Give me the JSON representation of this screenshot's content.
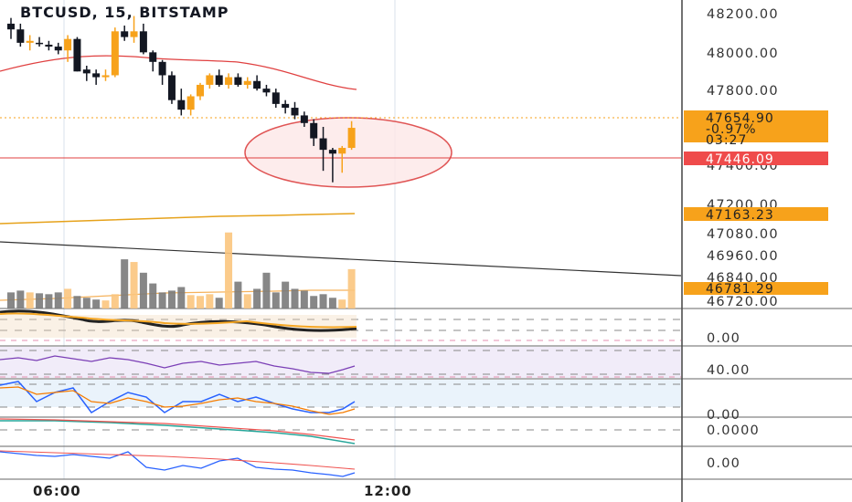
{
  "header": {
    "title": "BTCUSD, 15, BITSTAMP"
  },
  "colors": {
    "up": "#f7a21b",
    "down": "#131722",
    "ema": "#e6a21b",
    "band": "#e04040",
    "trend": "#333333",
    "volume_up": "#fbc57e",
    "volume_down": "#7a7a7a",
    "rsi": "#7b3fb6",
    "stoch_k": "#2962ff",
    "stoch_d": "#f57c00",
    "macd": "#26a69a",
    "macd_signal": "#ef5350"
  },
  "price_axis": {
    "ticks": [
      "48200.00",
      "48000.00",
      "47800.00",
      "47400.00",
      "47200.00",
      "47080.00",
      "46960.00",
      "46840.00",
      "46720.00"
    ]
  },
  "indicator_axes": {
    "volume_osc": "0.00",
    "rsi": "40.00",
    "stoch": "0.00",
    "macd": "0.0000",
    "last": "0.00"
  },
  "tags": {
    "last_price": "47654.90",
    "change": "-0.97%",
    "countdown": "03:27",
    "support": "47446.09",
    "ema": "47163.23",
    "trend": "46781.29"
  },
  "time_axis": {
    "labels": [
      "06:00",
      "12:00"
    ]
  },
  "chart_data": {
    "type": "candlestick",
    "title": "BTCUSD, 15, BITSTAMP",
    "candles": [
      {
        "o": 48200,
        "h": 48230,
        "l": 48120,
        "c": 48170
      },
      {
        "o": 48170,
        "h": 48200,
        "l": 48080,
        "c": 48100
      },
      {
        "o": 48100,
        "h": 48140,
        "l": 48060,
        "c": 48110
      },
      {
        "o": 48100,
        "h": 48130,
        "l": 48080,
        "c": 48095
      },
      {
        "o": 48090,
        "h": 48110,
        "l": 48060,
        "c": 48080
      },
      {
        "o": 48080,
        "h": 48100,
        "l": 48040,
        "c": 48060
      },
      {
        "o": 48060,
        "h": 48140,
        "l": 48000,
        "c": 48120
      },
      {
        "o": 48120,
        "h": 48130,
        "l": 47950,
        "c": 47950
      },
      {
        "o": 47960,
        "h": 47980,
        "l": 47900,
        "c": 47940
      },
      {
        "o": 47940,
        "h": 47960,
        "l": 47880,
        "c": 47920
      },
      {
        "o": 47920,
        "h": 47960,
        "l": 47900,
        "c": 47930
      },
      {
        "o": 47930,
        "h": 48180,
        "l": 47920,
        "c": 48160
      },
      {
        "o": 48160,
        "h": 48190,
        "l": 48110,
        "c": 48130
      },
      {
        "o": 48130,
        "h": 48240,
        "l": 48100,
        "c": 48160
      },
      {
        "o": 48160,
        "h": 48200,
        "l": 48040,
        "c": 48050
      },
      {
        "o": 48050,
        "h": 48060,
        "l": 47950,
        "c": 48000
      },
      {
        "o": 48000,
        "h": 48010,
        "l": 47880,
        "c": 47930
      },
      {
        "o": 47930,
        "h": 47950,
        "l": 47780,
        "c": 47800
      },
      {
        "o": 47800,
        "h": 47860,
        "l": 47720,
        "c": 47750
      },
      {
        "o": 47750,
        "h": 47830,
        "l": 47720,
        "c": 47820
      },
      {
        "o": 47820,
        "h": 47890,
        "l": 47800,
        "c": 47880
      },
      {
        "o": 47880,
        "h": 47940,
        "l": 47860,
        "c": 47930
      },
      {
        "o": 47930,
        "h": 47960,
        "l": 47870,
        "c": 47880
      },
      {
        "o": 47880,
        "h": 47940,
        "l": 47860,
        "c": 47920
      },
      {
        "o": 47920,
        "h": 47940,
        "l": 47870,
        "c": 47880
      },
      {
        "o": 47880,
        "h": 47920,
        "l": 47860,
        "c": 47900
      },
      {
        "o": 47900,
        "h": 47930,
        "l": 47850,
        "c": 47860
      },
      {
        "o": 47860,
        "h": 47880,
        "l": 47820,
        "c": 47840
      },
      {
        "o": 47840,
        "h": 47860,
        "l": 47760,
        "c": 47780
      },
      {
        "o": 47780,
        "h": 47800,
        "l": 47730,
        "c": 47760
      },
      {
        "o": 47760,
        "h": 47790,
        "l": 47700,
        "c": 47720
      },
      {
        "o": 47720,
        "h": 47740,
        "l": 47660,
        "c": 47680
      },
      {
        "o": 47680,
        "h": 47700,
        "l": 47560,
        "c": 47600
      },
      {
        "o": 47600,
        "h": 47660,
        "l": 47430,
        "c": 47540
      },
      {
        "o": 47540,
        "h": 47550,
        "l": 47370,
        "c": 47520
      },
      {
        "o": 47520,
        "h": 47560,
        "l": 47420,
        "c": 47550
      },
      {
        "o": 47550,
        "h": 47690,
        "l": 47540,
        "c": 47655
      }
    ],
    "volume": [
      18,
      20,
      18,
      17,
      16,
      18,
      22,
      14,
      12,
      10,
      9,
      16,
      55,
      52,
      40,
      28,
      18,
      20,
      24,
      15,
      14,
      16,
      12,
      85,
      30,
      16,
      22,
      40,
      18,
      30,
      22,
      20,
      14,
      16,
      12,
      10,
      44
    ],
    "ylim": [
      46700,
      48300
    ]
  }
}
